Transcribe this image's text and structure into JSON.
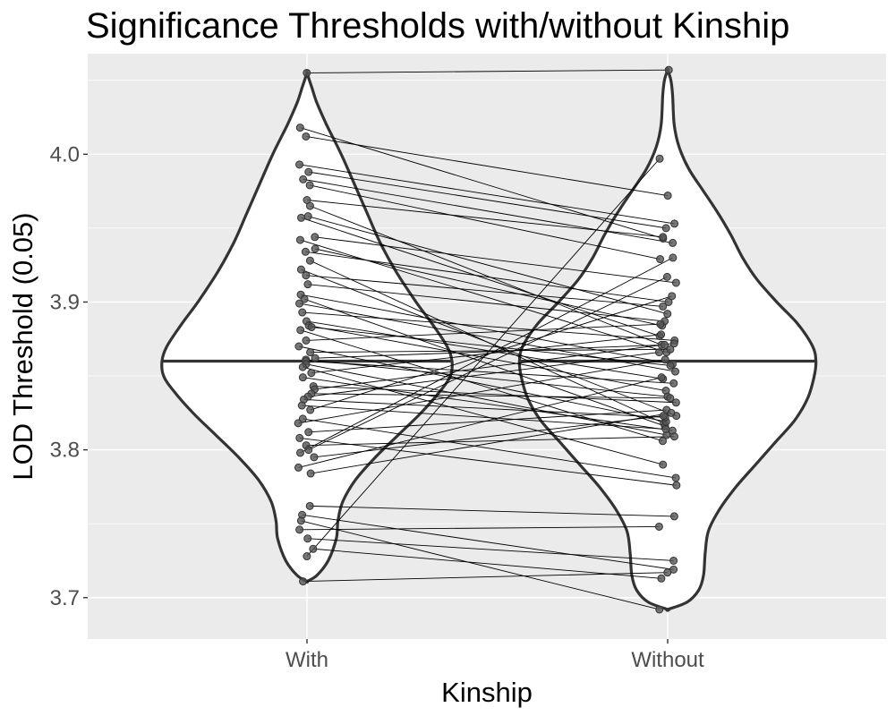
{
  "chart_data": {
    "type": "violin",
    "title": "Significance Thresholds with/without Kinship",
    "xlabel": "Kinship",
    "ylabel": "LOD Threshold (0.05)",
    "categories": [
      "With",
      "Without"
    ],
    "ylim": [
      3.672,
      4.068
    ],
    "yticks": [
      3.7,
      3.8,
      3.9,
      4.0
    ],
    "ytick_labels": [
      "3.7",
      "3.8",
      "3.9",
      "4.0"
    ],
    "grid": true,
    "background": "#ebebeb",
    "violin_fill": "#ffffff",
    "violin_stroke": "#333333",
    "point_color": "#555555",
    "line_color": "#000000",
    "medians": [
      3.86,
      3.86
    ],
    "with_values": [
      4.055,
      4.018,
      4.012,
      3.993,
      3.988,
      3.983,
      3.979,
      3.969,
      3.965,
      3.958,
      3.957,
      3.944,
      3.942,
      3.936,
      3.934,
      3.928,
      3.922,
      3.918,
      3.912,
      3.905,
      3.902,
      3.899,
      3.893,
      3.887,
      3.884,
      3.883,
      3.881,
      3.874,
      3.87,
      3.866,
      3.862,
      3.861,
      3.86,
      3.858,
      3.856,
      3.852,
      3.849,
      3.843,
      3.841,
      3.838,
      3.836,
      3.834,
      3.83,
      3.827,
      3.821,
      3.818,
      3.812,
      3.808,
      3.803,
      3.8,
      3.798,
      3.795,
      3.788,
      3.784,
      3.762,
      3.756,
      3.752,
      3.746,
      3.74,
      3.733,
      3.728,
      3.711
    ],
    "without_values": [
      4.057,
      3.943,
      3.972,
      3.953,
      3.95,
      3.94,
      3.929,
      3.944,
      3.871,
      3.892,
      3.877,
      3.913,
      3.866,
      3.884,
      3.9,
      3.818,
      3.823,
      3.897,
      3.887,
      3.858,
      3.816,
      3.853,
      3.874,
      3.848,
      3.84,
      3.857,
      3.806,
      3.885,
      3.819,
      3.868,
      3.871,
      3.836,
      3.845,
      3.81,
      3.79,
      3.878,
      3.813,
      3.832,
      3.872,
      3.835,
      3.866,
      3.822,
      3.814,
      3.904,
      3.781,
      3.861,
      3.827,
      3.776,
      3.809,
      3.917,
      3.93,
      3.823,
      3.849,
      3.825,
      3.755,
      3.719,
      3.692,
      3.748,
      3.725,
      3.713,
      3.997,
      3.717
    ],
    "with_density": [
      [
        3.711,
        0.0
      ],
      [
        3.715,
        0.06
      ],
      [
        3.725,
        0.13
      ],
      [
        3.74,
        0.18
      ],
      [
        3.752,
        0.19
      ],
      [
        3.765,
        0.22
      ],
      [
        3.78,
        0.3
      ],
      [
        3.795,
        0.42
      ],
      [
        3.81,
        0.56
      ],
      [
        3.825,
        0.7
      ],
      [
        3.84,
        0.82
      ],
      [
        3.85,
        0.88
      ],
      [
        3.86,
        0.89
      ],
      [
        3.87,
        0.86
      ],
      [
        3.885,
        0.77
      ],
      [
        3.9,
        0.67
      ],
      [
        3.92,
        0.55
      ],
      [
        3.94,
        0.45
      ],
      [
        3.96,
        0.37
      ],
      [
        3.98,
        0.29
      ],
      [
        4.0,
        0.21
      ],
      [
        4.02,
        0.12
      ],
      [
        4.035,
        0.06
      ],
      [
        4.045,
        0.03
      ],
      [
        4.055,
        0.0
      ]
    ],
    "without_density": [
      [
        3.692,
        0.0
      ],
      [
        3.697,
        0.12
      ],
      [
        3.705,
        0.19
      ],
      [
        3.715,
        0.22
      ],
      [
        3.73,
        0.23
      ],
      [
        3.745,
        0.25
      ],
      [
        3.76,
        0.32
      ],
      [
        3.775,
        0.42
      ],
      [
        3.79,
        0.54
      ],
      [
        3.805,
        0.66
      ],
      [
        3.82,
        0.78
      ],
      [
        3.835,
        0.86
      ],
      [
        3.85,
        0.9
      ],
      [
        3.86,
        0.91
      ],
      [
        3.87,
        0.89
      ],
      [
        3.885,
        0.8
      ],
      [
        3.9,
        0.67
      ],
      [
        3.915,
        0.55
      ],
      [
        3.93,
        0.46
      ],
      [
        3.945,
        0.39
      ],
      [
        3.96,
        0.31
      ],
      [
        3.975,
        0.22
      ],
      [
        3.99,
        0.13
      ],
      [
        4.005,
        0.07
      ],
      [
        4.02,
        0.04
      ],
      [
        4.04,
        0.03
      ],
      [
        4.05,
        0.02
      ],
      [
        4.057,
        0.0
      ]
    ]
  }
}
